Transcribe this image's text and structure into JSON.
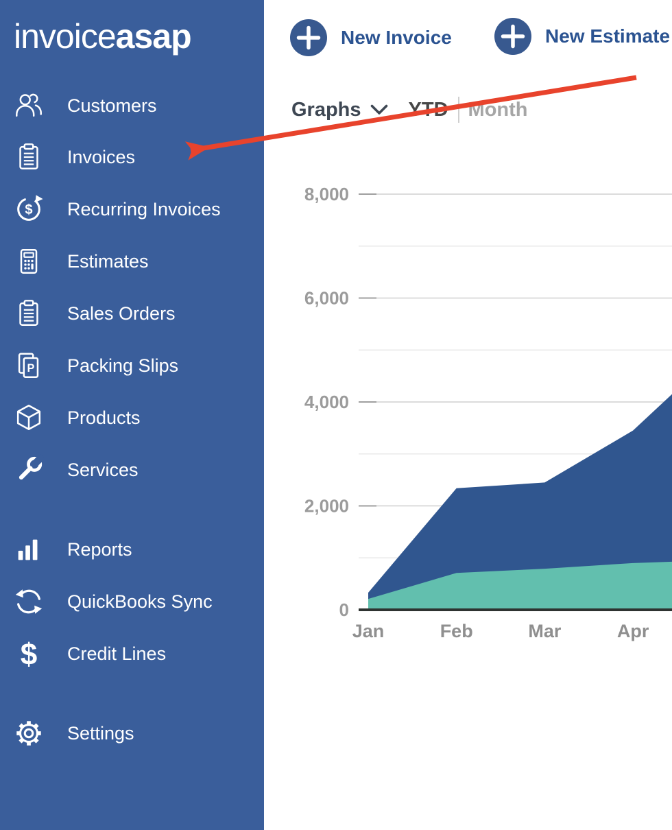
{
  "app": {
    "name": "InvoiceASAP",
    "logo": {
      "light": "invoice",
      "bold": "asap"
    }
  },
  "topbar": {
    "buttons": [
      {
        "label": "New Invoice",
        "icon": "plus-circle-icon"
      },
      {
        "label": "New Estimate",
        "icon": "plus-circle-icon"
      }
    ]
  },
  "toolbar": {
    "graphs_label": "Graphs",
    "period_tabs": [
      {
        "label": "YTD",
        "active": true
      },
      {
        "label": "Month",
        "active": false
      }
    ]
  },
  "sidebar": {
    "items": [
      {
        "label": "Customers",
        "icon": "customers-icon"
      },
      {
        "label": "Invoices",
        "icon": "invoices-icon"
      },
      {
        "label": "Recurring Invoices",
        "icon": "recurring-invoices-icon"
      },
      {
        "label": "Estimates",
        "icon": "estimates-icon"
      },
      {
        "label": "Sales Orders",
        "icon": "sales-orders-icon"
      },
      {
        "label": "Packing Slips",
        "icon": "packing-slips-icon"
      },
      {
        "label": "Products",
        "icon": "products-icon"
      },
      {
        "label": "Services",
        "icon": "services-icon"
      },
      {
        "label": "Reports",
        "icon": "reports-icon"
      },
      {
        "label": "QuickBooks Sync",
        "icon": "quickbooks-sync-icon"
      },
      {
        "label": "Credit Lines",
        "icon": "credit-lines-icon"
      },
      {
        "label": "Settings",
        "icon": "settings-icon"
      }
    ]
  },
  "annotation": {
    "type": "arrow",
    "points_to": "Invoices",
    "color": "#e8432c"
  },
  "colors": {
    "sidebar_bg": "#3a5e9b",
    "button_circle": "#38598f",
    "button_text": "#2b5391",
    "series_blue": "#30568f",
    "series_teal": "#62bfae",
    "axis_text": "#9b9b9b",
    "zero_axis": "#2e3331",
    "arrow_red": "#e8432c"
  },
  "chart_data": {
    "type": "area",
    "title": "",
    "xlabel": "",
    "ylabel": "",
    "categories": [
      "Jan",
      "Feb",
      "Mar",
      "Apr"
    ],
    "series": [
      {
        "name": "blue-series",
        "color": "#30568f",
        "values": [
          330,
          2340,
          2450,
          3450
        ],
        "value_at_right_edge": 4150
      },
      {
        "name": "teal-series",
        "color": "#62bfae",
        "values": [
          210,
          710,
          790,
          900
        ],
        "value_at_right_edge": 925
      }
    ],
    "ylim": [
      0,
      8500
    ],
    "y_major_ticks": [
      0,
      2000,
      4000,
      6000,
      8000
    ],
    "y_tick_labels": [
      "0",
      "2,000",
      "4,000",
      "6,000",
      "8,000"
    ],
    "y_minor_ticks": [
      1000,
      3000,
      5000,
      7000
    ],
    "grid": true,
    "legend": false,
    "x_axis_clipped_right": true
  }
}
